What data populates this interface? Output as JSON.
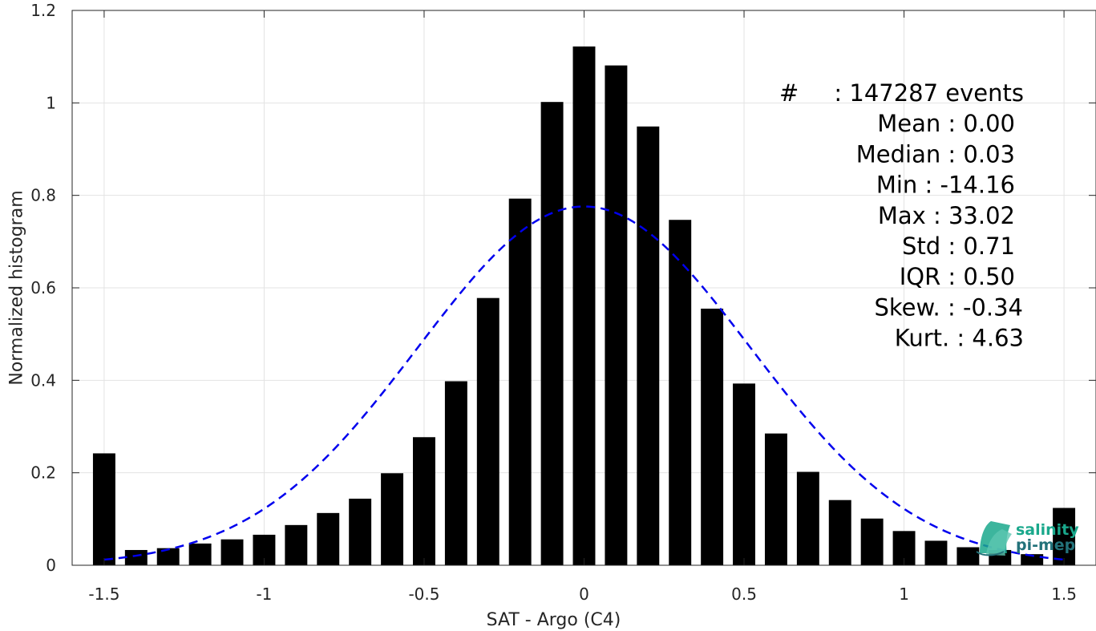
{
  "chart_data": {
    "type": "bar",
    "title": "",
    "xlabel": "SAT - Argo (C4)",
    "ylabel": "Normalized histogram",
    "xlim": [
      -1.6,
      1.6
    ],
    "ylim": [
      0,
      1.2
    ],
    "xticks": [
      -1.5,
      -1,
      -0.5,
      0,
      0.5,
      1,
      1.5
    ],
    "xtick_labels": [
      "-1.5",
      "-1",
      "-0.5",
      "0",
      "0.5",
      "1",
      "1.5"
    ],
    "yticks": [
      0,
      0.2,
      0.4,
      0.6,
      0.8,
      1,
      1.2
    ],
    "ytick_labels": [
      "0",
      "0.2",
      "0.4",
      "0.6",
      "0.8",
      "1",
      "1.2"
    ],
    "grid": true,
    "bar_color": "#000000",
    "bin_width": 0.1,
    "x": [
      -1.5,
      -1.4,
      -1.3,
      -1.2,
      -1.1,
      -1.0,
      -0.9,
      -0.8,
      -0.7,
      -0.6,
      -0.5,
      -0.4,
      -0.3,
      -0.2,
      -0.1,
      0.0,
      0.1,
      0.2,
      0.3,
      0.4,
      0.5,
      0.6,
      0.7,
      0.8,
      0.9,
      1.0,
      1.1,
      1.2,
      1.3,
      1.4,
      1.5
    ],
    "values": [
      0.242,
      0.033,
      0.037,
      0.047,
      0.056,
      0.066,
      0.087,
      0.113,
      0.144,
      0.199,
      0.277,
      0.398,
      0.578,
      0.793,
      1.002,
      1.122,
      1.081,
      0.949,
      0.747,
      0.555,
      0.393,
      0.285,
      0.202,
      0.141,
      0.101,
      0.074,
      0.053,
      0.039,
      0.033,
      0.024,
      0.124
    ],
    "fit_curve": {
      "style": "dashed",
      "color": "#0000ee",
      "distribution": "normal",
      "mean": 0.0,
      "std": 0.52,
      "peak": 0.776,
      "x_range": [
        -1.5,
        1.5
      ]
    },
    "annotations": [
      {
        "label": "#",
        "sep": ":",
        "value": "147287 events"
      },
      {
        "label": "Mean",
        "sep": ":",
        "value": "0.00"
      },
      {
        "label": "Median",
        "sep": ":",
        "value": "0.03"
      },
      {
        "label": "Min",
        "sep": ":",
        "value": "-14.16"
      },
      {
        "label": "Max",
        "sep": ":",
        "value": "33.02"
      },
      {
        "label": "Std",
        "sep": ":",
        "value": "0.71"
      },
      {
        "label": "IQR",
        "sep": ":",
        "value": "0.50"
      },
      {
        "label": "Skew.",
        "sep": ":",
        "value": "-0.34"
      },
      {
        "label": "Kurt.",
        "sep": ":",
        "value": "4.63"
      }
    ]
  },
  "logo": {
    "line1": "salinity",
    "line2": "pi-mep",
    "icon": "wave-logo-icon",
    "color_primary": "#1aa88c",
    "color_secondary": "#23727a"
  }
}
